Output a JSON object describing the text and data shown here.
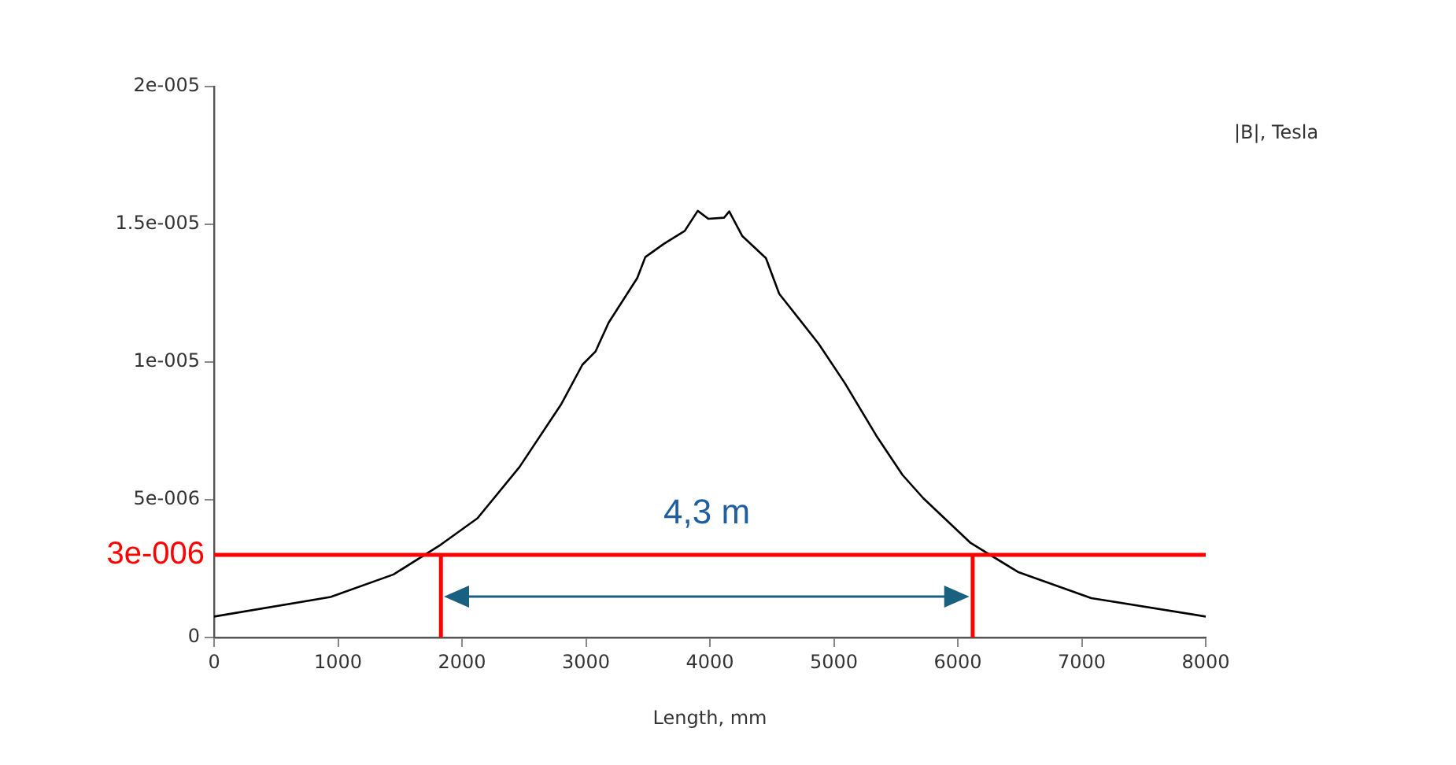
{
  "chart_data": {
    "type": "line",
    "xlabel": "Length, mm",
    "ylabel": "|B|, Tesla",
    "series": [
      {
        "color": "#000000",
        "x": [
          0,
          940,
          1448,
          1829,
          2125,
          2464,
          2802,
          2971,
          3077,
          3183,
          3414,
          3479,
          3628,
          3797,
          3902,
          3987,
          4114,
          4156,
          4262,
          4452,
          4559,
          4876,
          5088,
          5342,
          5554,
          5723,
          6104,
          6485,
          7077,
          8000
        ],
        "values": [
          7.6e-07,
          1.47e-06,
          2.29e-06,
          3.37e-06,
          4.33e-06,
          6.19e-06,
          8.48e-06,
          9.9e-06,
          1.038e-05,
          1.143e-05,
          1.305e-05,
          1.381e-05,
          1.429e-05,
          1.476e-05,
          1.549e-05,
          1.52e-05,
          1.524e-05,
          1.547e-05,
          1.457e-05,
          1.377e-05,
          1.248e-05,
          1.067e-05,
          9.24e-06,
          7.33e-06,
          5.9e-06,
          5.05e-06,
          3.43e-06,
          2.38e-06,
          1.43e-06,
          7.6e-07
        ]
      }
    ],
    "xlim": [
      0,
      8000
    ],
    "xticks": [
      0,
      1000,
      2000,
      3000,
      4000,
      5000,
      6000,
      7000,
      8000
    ],
    "ylim": [
      0,
      2e-05
    ],
    "yticks": [
      0,
      {
        "value": 5e-06,
        "label": "5e-006"
      },
      {
        "value": 1e-05,
        "label": "1e-005"
      },
      {
        "value": 1.5e-05,
        "label": "1.5e-005"
      },
      {
        "value": 2e-05,
        "label": "2e-005"
      }
    ],
    "ref_lines": [
      {
        "axis": "y",
        "value": 3e-06,
        "label": "3e-006",
        "color": "#ff0000"
      },
      {
        "axis": "x",
        "value": 1830,
        "color": "#ff0000"
      },
      {
        "axis": "x",
        "value": 6120,
        "color": "#ff0000"
      }
    ],
    "annotations": [
      "4,3 m"
    ],
    "grid": false,
    "legend": false,
    "marker": "none",
    "line_style": "solid"
  }
}
